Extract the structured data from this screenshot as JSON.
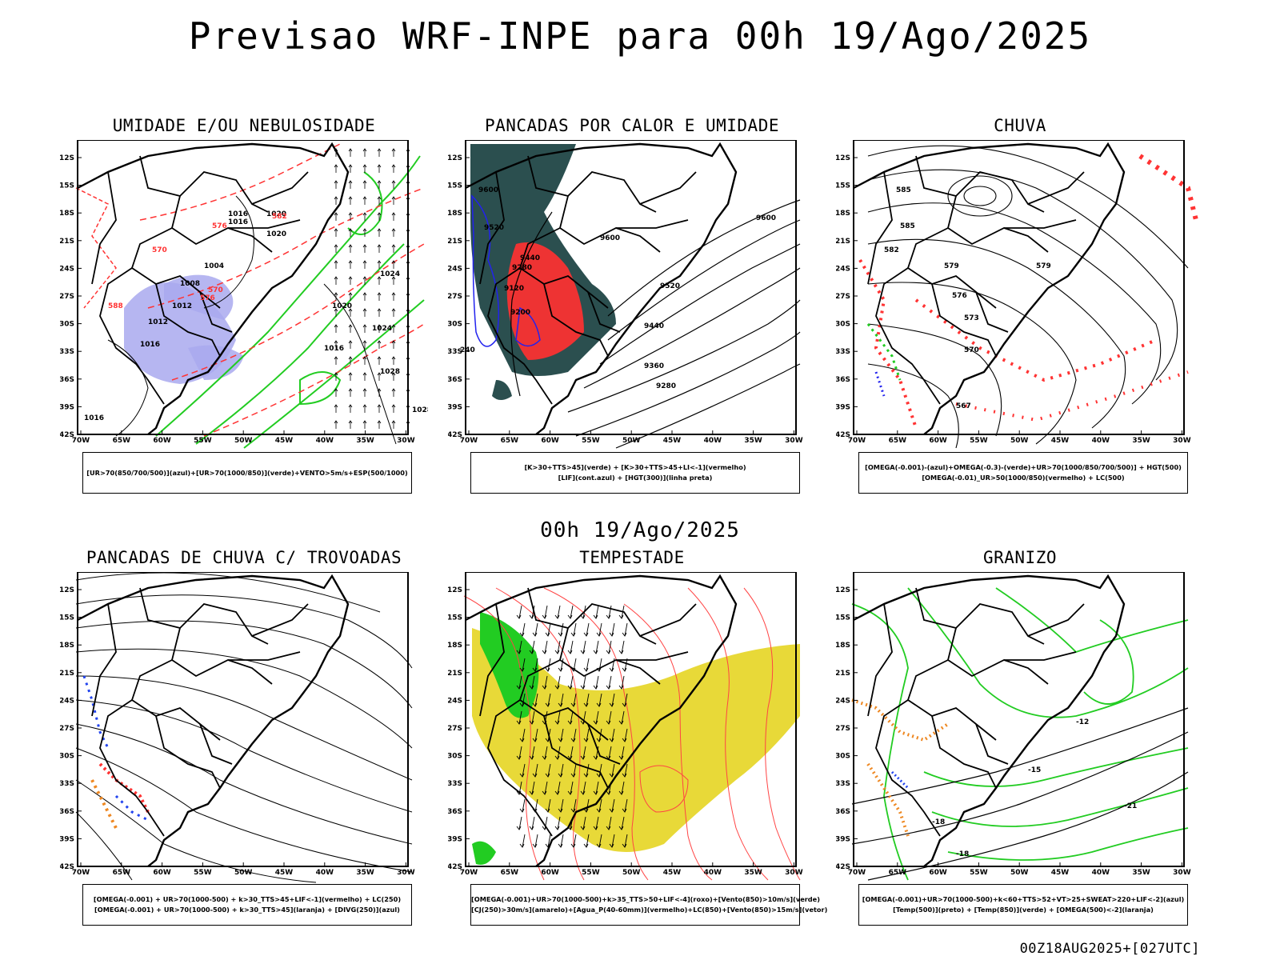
{
  "title": "Previsao WRF-INPE  para 00h 19/Ago/2025",
  "mid_date": "00h 19/Ago/2025",
  "footer": "00Z18AUG2025+[027UTC]",
  "lat_labels": [
    "12S",
    "15S",
    "18S",
    "21S",
    "24S",
    "27S",
    "30S",
    "33S",
    "36S",
    "39S",
    "42S"
  ],
  "lon_labels": [
    "70W",
    "65W",
    "60W",
    "55W",
    "50W",
    "45W",
    "40W",
    "35W",
    "30W"
  ],
  "panels": [
    {
      "title": "UMIDADE E/OU NEBULOSIDADE",
      "legend": [
        "[UR>70(850/700/500)](azul)+[UR>70(1000/850)](verde)+VENTO>5m/s+ESP(500/1000)"
      ],
      "labels": [
        "1016",
        "1016",
        "1020",
        "1020",
        "1004",
        "1008",
        "1012",
        "1012",
        "1016",
        "1020",
        "1016",
        "1024",
        "1024",
        "1028",
        "1016",
        "1028",
        "576",
        "570",
        "576",
        "582",
        "588",
        "570"
      ],
      "colors": {
        "blue": "#a9a9ee",
        "green": "#22cc22",
        "red": "#ff3333",
        "black": "#000000"
      }
    },
    {
      "title": "PANCADAS POR CALOR E UMIDADE",
      "legend": [
        "[K>30+TTS>45](verde) + [K>30+TTS>45+LI<-1](vermelho)",
        "[LIF](cont.azul) + [HGT(300)](linha preta)"
      ],
      "labels": [
        "9600",
        "9520",
        "9440",
        "9280",
        "9120",
        "9200",
        "9600",
        "9600",
        "9520",
        "9440",
        "9360",
        "9280",
        "240"
      ],
      "colors": {
        "teal": "#2b4f4f",
        "red": "#ee3333",
        "blue": "#2222ee",
        "black": "#000000"
      }
    },
    {
      "title": "CHUVA",
      "legend": [
        "[OMEGA(-0.001)-(azul)+OMEGA(-0.3)-(verde)+UR>70(1000/850/700/500)] + HGT(500)",
        "[OMEGA(-0.01)_UR>50(1000/850)(vermelho) + LC(500)"
      ],
      "labels": [
        "585",
        "585",
        "582",
        "579",
        "579",
        "576",
        "573",
        "570",
        "567"
      ],
      "colors": {
        "red": "#ff3333",
        "green": "#22cc22",
        "blue": "#2222ee",
        "black": "#000000"
      }
    },
    {
      "title": "PANCADAS DE CHUVA C/ TROVOADAS",
      "legend": [
        "[OMEGA(-0.001) + UR>70(1000-500) + k>30_TTS>45+LIF<-1](vermelho) + LC(250)",
        "[OMEGA(-0.001) + UR>70(1000-500) + k>30_TTS>45](laranja) + [DIVG(250)](azul)"
      ],
      "labels": [],
      "colors": {
        "red": "#ff3333",
        "orange": "#ee8822",
        "blue": "#2244ee",
        "black": "#000000"
      }
    },
    {
      "title": "TEMPESTADE",
      "legend": [
        "[OMEGA(-0.001)+UR>70(1000-500)+k>35_TTS>50+LIF<-4](roxo)+[Vento(850)>10m/s](verde)",
        "[CJ(250)>30m/s](amarelo)+[Agua_P(40-60mm)](vermelho)+LC(850)+[Vento(850)>15m/s](vetor)"
      ],
      "labels": [],
      "colors": {
        "yellow": "#e8d938",
        "green": "#22cc22",
        "red": "#ff4444",
        "black": "#000000"
      }
    },
    {
      "title": "GRANIZO",
      "legend": [
        "[OMEGA(-0.001)+UR>70(1000-500)+k<60+TTS>52+VT>25+SWEAT>220+LIF<-2](azul)",
        "[Temp(500)](preto) + [Temp(850)](verde) + [OMEGA(500)<-2](laranja)"
      ],
      "labels": [
        "-12",
        "-15",
        "-18",
        "-18",
        "-21"
      ],
      "colors": {
        "green": "#22cc22",
        "orange": "#ee8822",
        "blue": "#2244ee",
        "black": "#000000"
      }
    }
  ]
}
